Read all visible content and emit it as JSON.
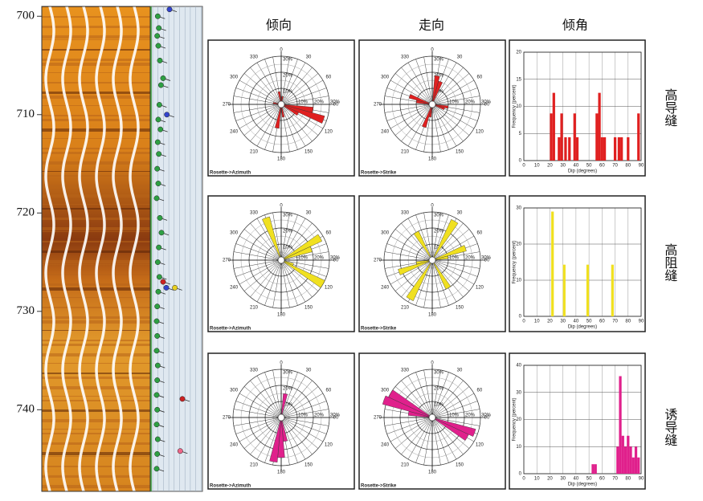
{
  "column_headers": [
    "倾向",
    "走向",
    "倾角"
  ],
  "row_labels": [
    "高导缝",
    "高阻缝",
    "诱导缝"
  ],
  "chart_data": [
    {
      "type": "log",
      "ylim": [
        699,
        748.3
      ],
      "yticks": [
        700,
        710,
        720,
        730,
        740
      ],
      "xlim": [
        0,
        90
      ],
      "points": [
        {
          "depth": 699.3,
          "dip": 30,
          "color": "#3344cc"
        },
        {
          "depth": 700.0,
          "dip": 8,
          "color": "#2ea043"
        },
        {
          "depth": 701.2,
          "dip": 10,
          "color": "#2ea043"
        },
        {
          "depth": 702.0,
          "dip": 7,
          "color": "#2ea043"
        },
        {
          "depth": 703.0,
          "dip": 9,
          "color": "#2ea043"
        },
        {
          "depth": 704.5,
          "dip": 12,
          "color": "#2ea043"
        },
        {
          "depth": 706.3,
          "dip": 18,
          "color": "#2ea043"
        },
        {
          "depth": 707.0,
          "dip": 14,
          "color": "#2ea043"
        },
        {
          "depth": 709.0,
          "dip": 11,
          "color": "#2ea043"
        },
        {
          "depth": 710.0,
          "dip": 25,
          "color": "#3344cc"
        },
        {
          "depth": 710.5,
          "dip": 9,
          "color": "#2ea043"
        },
        {
          "depth": 711.5,
          "dip": 13,
          "color": "#2ea043"
        },
        {
          "depth": 712.8,
          "dip": 8,
          "color": "#2ea043"
        },
        {
          "depth": 714.0,
          "dip": 10,
          "color": "#2ea043"
        },
        {
          "depth": 715.5,
          "dip": 7,
          "color": "#2ea043"
        },
        {
          "depth": 717.0,
          "dip": 9,
          "color": "#2ea043"
        },
        {
          "depth": 718.5,
          "dip": 6,
          "color": "#2ea043"
        },
        {
          "depth": 720.5,
          "dip": 12,
          "color": "#2ea043"
        },
        {
          "depth": 722.0,
          "dip": 15,
          "color": "#2ea043"
        },
        {
          "depth": 723.5,
          "dip": 10,
          "color": "#2ea043"
        },
        {
          "depth": 725.0,
          "dip": 8,
          "color": "#2ea043"
        },
        {
          "depth": 726.5,
          "dip": 11,
          "color": "#2ea043"
        },
        {
          "depth": 727.0,
          "dip": 18,
          "color": "#cc2222"
        },
        {
          "depth": 727.6,
          "dip": 24,
          "color": "#3344cc"
        },
        {
          "depth": 727.6,
          "dip": 40,
          "color": "#e8d020"
        },
        {
          "depth": 728.0,
          "dip": 9,
          "color": "#2ea043"
        },
        {
          "depth": 729.5,
          "dip": 7,
          "color": "#2ea043"
        },
        {
          "depth": 731.0,
          "dip": 6,
          "color": "#2ea043"
        },
        {
          "depth": 732.5,
          "dip": 7,
          "color": "#2ea043"
        },
        {
          "depth": 734.0,
          "dip": 6,
          "color": "#2ea043"
        },
        {
          "depth": 735.5,
          "dip": 8,
          "color": "#2ea043"
        },
        {
          "depth": 737.0,
          "dip": 7,
          "color": "#2ea043"
        },
        {
          "depth": 738.5,
          "dip": 6,
          "color": "#2ea043"
        },
        {
          "depth": 738.9,
          "dip": 54,
          "color": "#cc2222"
        },
        {
          "depth": 740.0,
          "dip": 7,
          "color": "#2ea043"
        },
        {
          "depth": 741.5,
          "dip": 6,
          "color": "#2ea043"
        },
        {
          "depth": 743.0,
          "dip": 8,
          "color": "#2ea043"
        },
        {
          "depth": 744.2,
          "dip": 50,
          "color": "#ee6688"
        },
        {
          "depth": 744.5,
          "dip": 7,
          "color": "#2ea043"
        },
        {
          "depth": 746.0,
          "dip": 6,
          "color": "#2ea043"
        }
      ]
    },
    {
      "type": "rose",
      "label": "Rosette->Azimuth",
      "color": "#e02020",
      "rlim": [
        0,
        30
      ],
      "rings": [
        {
          "value": 10,
          "label": "10%"
        },
        {
          "value": 20,
          "label": "20%"
        },
        {
          "value": 30,
          "label": "30%"
        }
      ],
      "angle_labels": [
        0,
        30,
        60,
        90,
        120,
        150,
        180,
        210,
        240,
        270,
        300,
        330
      ],
      "angles": [
        10,
        100,
        110,
        120,
        170,
        190,
        280,
        350
      ],
      "values": [
        5,
        20,
        28,
        12,
        8,
        15,
        5,
        8
      ]
    },
    {
      "type": "rose",
      "label": "Rosette->Strike",
      "color": "#e02020",
      "rlim": [
        0,
        30
      ],
      "rings": [
        {
          "value": 10,
          "label": "10%"
        },
        {
          "value": 20,
          "label": "20%"
        },
        {
          "value": 30,
          "label": "30%"
        }
      ],
      "angle_labels": [
        0,
        30,
        60,
        90,
        120,
        150,
        180,
        210,
        240,
        270,
        300,
        330
      ],
      "angles": [
        10,
        20,
        100,
        110,
        190,
        200,
        280,
        290
      ],
      "values": [
        18,
        15,
        10,
        8,
        8,
        15,
        10,
        15
      ]
    },
    {
      "type": "histogram",
      "xlabel": "Dip (degrees)",
      "ylabel": "Frequency (percent)",
      "color": "#e02020",
      "xlim": [
        0,
        90
      ],
      "xticks": [
        0,
        10,
        20,
        30,
        40,
        50,
        60,
        70,
        80,
        90
      ],
      "ylim": [
        0,
        20
      ],
      "yticks": [
        0,
        5,
        10,
        15,
        20
      ],
      "x": [
        21,
        23,
        27,
        29,
        32,
        35,
        39,
        41,
        56,
        58,
        60,
        62,
        70,
        73,
        75,
        80,
        88
      ],
      "values": [
        8.7,
        12.5,
        4.3,
        8.7,
        4.3,
        4.3,
        8.7,
        4.3,
        8.7,
        12.5,
        4.3,
        4.3,
        4.3,
        4.3,
        4.3,
        4.3,
        8.7
      ]
    },
    {
      "type": "rose",
      "label": "Rosette->Azimuth",
      "color": "#f0e020",
      "rlim": [
        0,
        30
      ],
      "rings": [
        {
          "value": 10,
          "label": "10%"
        },
        {
          "value": 20,
          "label": "20%"
        },
        {
          "value": 30,
          "label": "30%"
        }
      ],
      "angle_labels": [
        0,
        30,
        60,
        90,
        120,
        150,
        180,
        210,
        240,
        270,
        300,
        330
      ],
      "angles": [
        340,
        60,
        70,
        110,
        120
      ],
      "values": [
        28,
        28,
        20,
        8,
        30
      ]
    },
    {
      "type": "rose",
      "label": "Rosette->Strike",
      "color": "#f0e020",
      "rlim": [
        0,
        30
      ],
      "rings": [
        {
          "value": 10,
          "label": "10%"
        },
        {
          "value": 20,
          "label": "20%"
        },
        {
          "value": 30,
          "label": "30%"
        }
      ],
      "angle_labels": [
        0,
        30,
        60,
        90,
        120,
        150,
        180,
        210,
        240,
        270,
        300,
        330
      ],
      "angles": [
        30,
        210,
        330,
        150,
        250,
        70,
        80,
        260
      ],
      "values": [
        28,
        28,
        20,
        20,
        22,
        22,
        10,
        10
      ]
    },
    {
      "type": "histogram",
      "xlabel": "Dip (degrees)",
      "ylabel": "Frequency (percent)",
      "color": "#f0e020",
      "xlim": [
        0,
        90
      ],
      "xticks": [
        0,
        10,
        20,
        30,
        40,
        50,
        60,
        70,
        80,
        90
      ],
      "ylim": [
        0,
        30
      ],
      "yticks": [
        0,
        10,
        20,
        30
      ],
      "x": [
        22,
        31,
        49,
        68
      ],
      "values": [
        29,
        14.3,
        14.3,
        14.3
      ]
    },
    {
      "type": "rose",
      "label": "Rosette->Azimuth",
      "color": "#e0208c",
      "rlim": [
        0,
        30
      ],
      "rings": [
        {
          "value": 10,
          "label": "10%"
        },
        {
          "value": 20,
          "label": "20%"
        },
        {
          "value": 30,
          "label": "30%"
        }
      ],
      "angle_labels": [
        0,
        30,
        60,
        90,
        120,
        150,
        180,
        210,
        240,
        270,
        300,
        330
      ],
      "angles": [
        10,
        170,
        180,
        190
      ],
      "values": [
        15,
        15,
        25,
        28
      ]
    },
    {
      "type": "rose",
      "label": "Rosette->Strike",
      "color": "#e0208c",
      "rlim": [
        0,
        30
      ],
      "rings": [
        {
          "value": 10,
          "label": "10%"
        },
        {
          "value": 20,
          "label": "20%"
        },
        {
          "value": 30,
          "label": "30%"
        }
      ],
      "angle_labels": [
        0,
        30,
        60,
        90,
        120,
        150,
        180,
        210,
        240,
        270,
        300,
        330
      ],
      "angles": [
        280,
        290,
        300,
        110,
        120
      ],
      "values": [
        15,
        32,
        30,
        28,
        25
      ]
    },
    {
      "type": "histogram",
      "xlabel": "Dip (degrees)",
      "ylabel": "Frequency (percent)",
      "color": "#e0208c",
      "xlim": [
        0,
        90
      ],
      "xticks": [
        0,
        10,
        20,
        30,
        40,
        50,
        60,
        70,
        80,
        90
      ],
      "ylim": [
        0,
        40
      ],
      "yticks": [
        0,
        10,
        20,
        30,
        40
      ],
      "x": [
        53,
        55,
        72,
        74,
        76,
        78,
        80,
        82,
        84,
        86,
        88
      ],
      "values": [
        3.5,
        3.5,
        10,
        36,
        14,
        10,
        14,
        10,
        6,
        10,
        6
      ]
    }
  ]
}
